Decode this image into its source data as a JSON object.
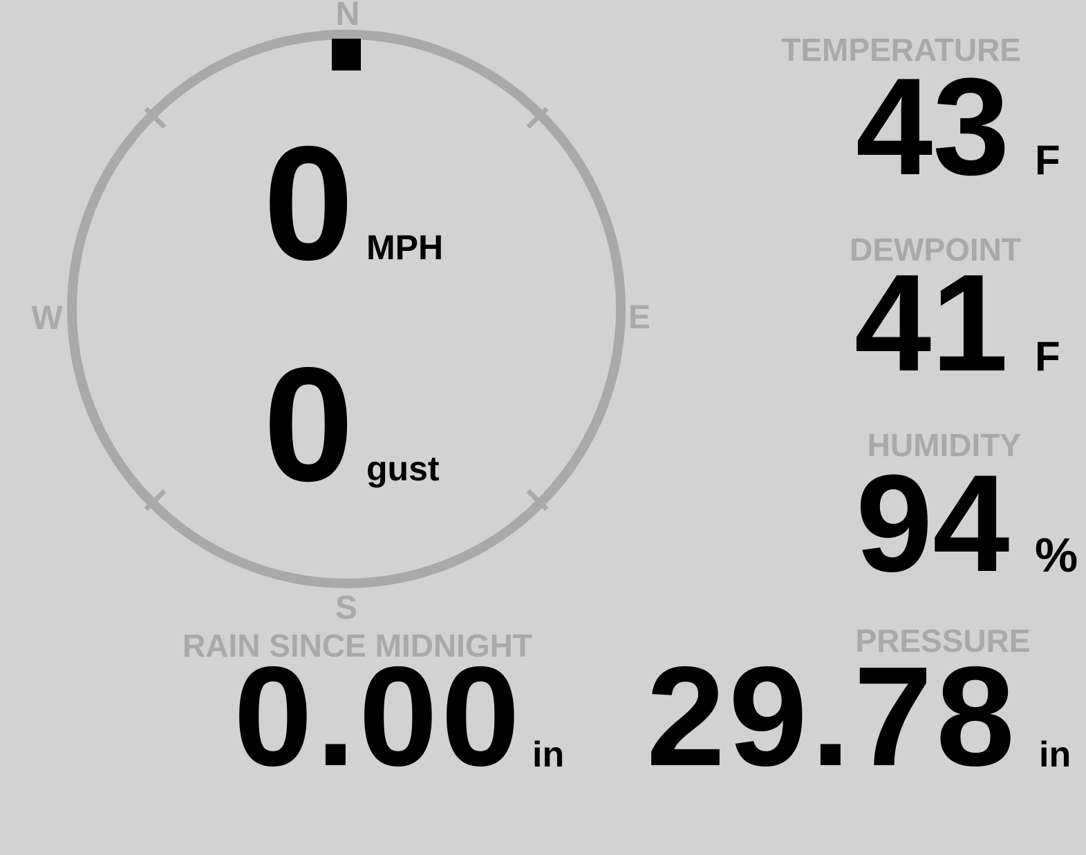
{
  "colors": {
    "background": "#d2d2d2",
    "muted": "#a9a9a9",
    "ink": "#000000"
  },
  "compass": {
    "north_label": "N",
    "east_label": "E",
    "south_label": "S",
    "west_label": "W",
    "wind": {
      "speed": "0",
      "speed_unit": "MPH",
      "gust": "0",
      "gust_unit": "gust",
      "direction": "N",
      "direction_deg": 0
    }
  },
  "metrics": {
    "temperature": {
      "label": "TEMPERATURE",
      "value": "43",
      "unit": "F"
    },
    "dewpoint": {
      "label": "DEWPOINT",
      "value": "41",
      "unit": "F"
    },
    "humidity": {
      "label": "HUMIDITY",
      "value": "94",
      "unit": "%"
    },
    "rain_since_midnight": {
      "label": "RAIN SINCE MIDNIGHT",
      "value": "0.00",
      "unit": "in"
    },
    "pressure": {
      "label": "PRESSURE",
      "value": "29.78",
      "unit": "in"
    }
  }
}
